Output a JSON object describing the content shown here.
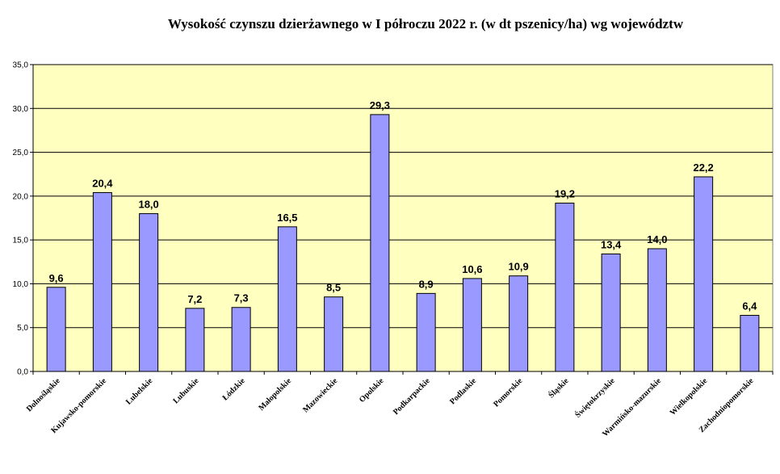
{
  "chart_data": {
    "type": "bar",
    "title": "Wysokość czynszu dzierżawnego w I półroczu 2022 r. (w dt pszenicy/ha) wg województw",
    "categories": [
      "Dolnośląskie",
      "Kujawsko-pomorskie",
      "Lubelskie",
      "Lubuskie",
      "Łódzkie",
      "Małopolskie",
      "Mazowieckie",
      "Opolskie",
      "Podkarpackie",
      "Podlaskie",
      "Pomorskie",
      "Śląskie",
      "Świętokrzyskie",
      "Warmińsko-mazurskie",
      "Wielkopolskie",
      "Zachodniopomorskie"
    ],
    "values": [
      9.6,
      20.4,
      18.0,
      7.2,
      7.3,
      16.5,
      8.5,
      29.3,
      8.9,
      10.6,
      10.9,
      19.2,
      13.4,
      14.0,
      22.2,
      6.4
    ],
    "value_labels": [
      "9,6",
      "20,4",
      "18,0",
      "7,2",
      "7,3",
      "16,5",
      "8,5",
      "29,3",
      "8,9",
      "10,6",
      "10,9",
      "19,2",
      "13,4",
      "14,0",
      "22,2",
      "6,4"
    ],
    "yticks": [
      0,
      5,
      10,
      15,
      20,
      25,
      30,
      35
    ],
    "ytick_labels": [
      "0,0",
      "5,0",
      "10,0",
      "15,0",
      "20,0",
      "25,0",
      "30,0",
      "35,0"
    ],
    "ylim": [
      0,
      35
    ],
    "xlabel": "",
    "ylabel": "",
    "grid": true,
    "legend": "none",
    "colors": {
      "plot_background": "#FFFFC0",
      "bar_fill": "#9999FF",
      "bar_stroke": "#000000",
      "grid": "#000000"
    }
  }
}
